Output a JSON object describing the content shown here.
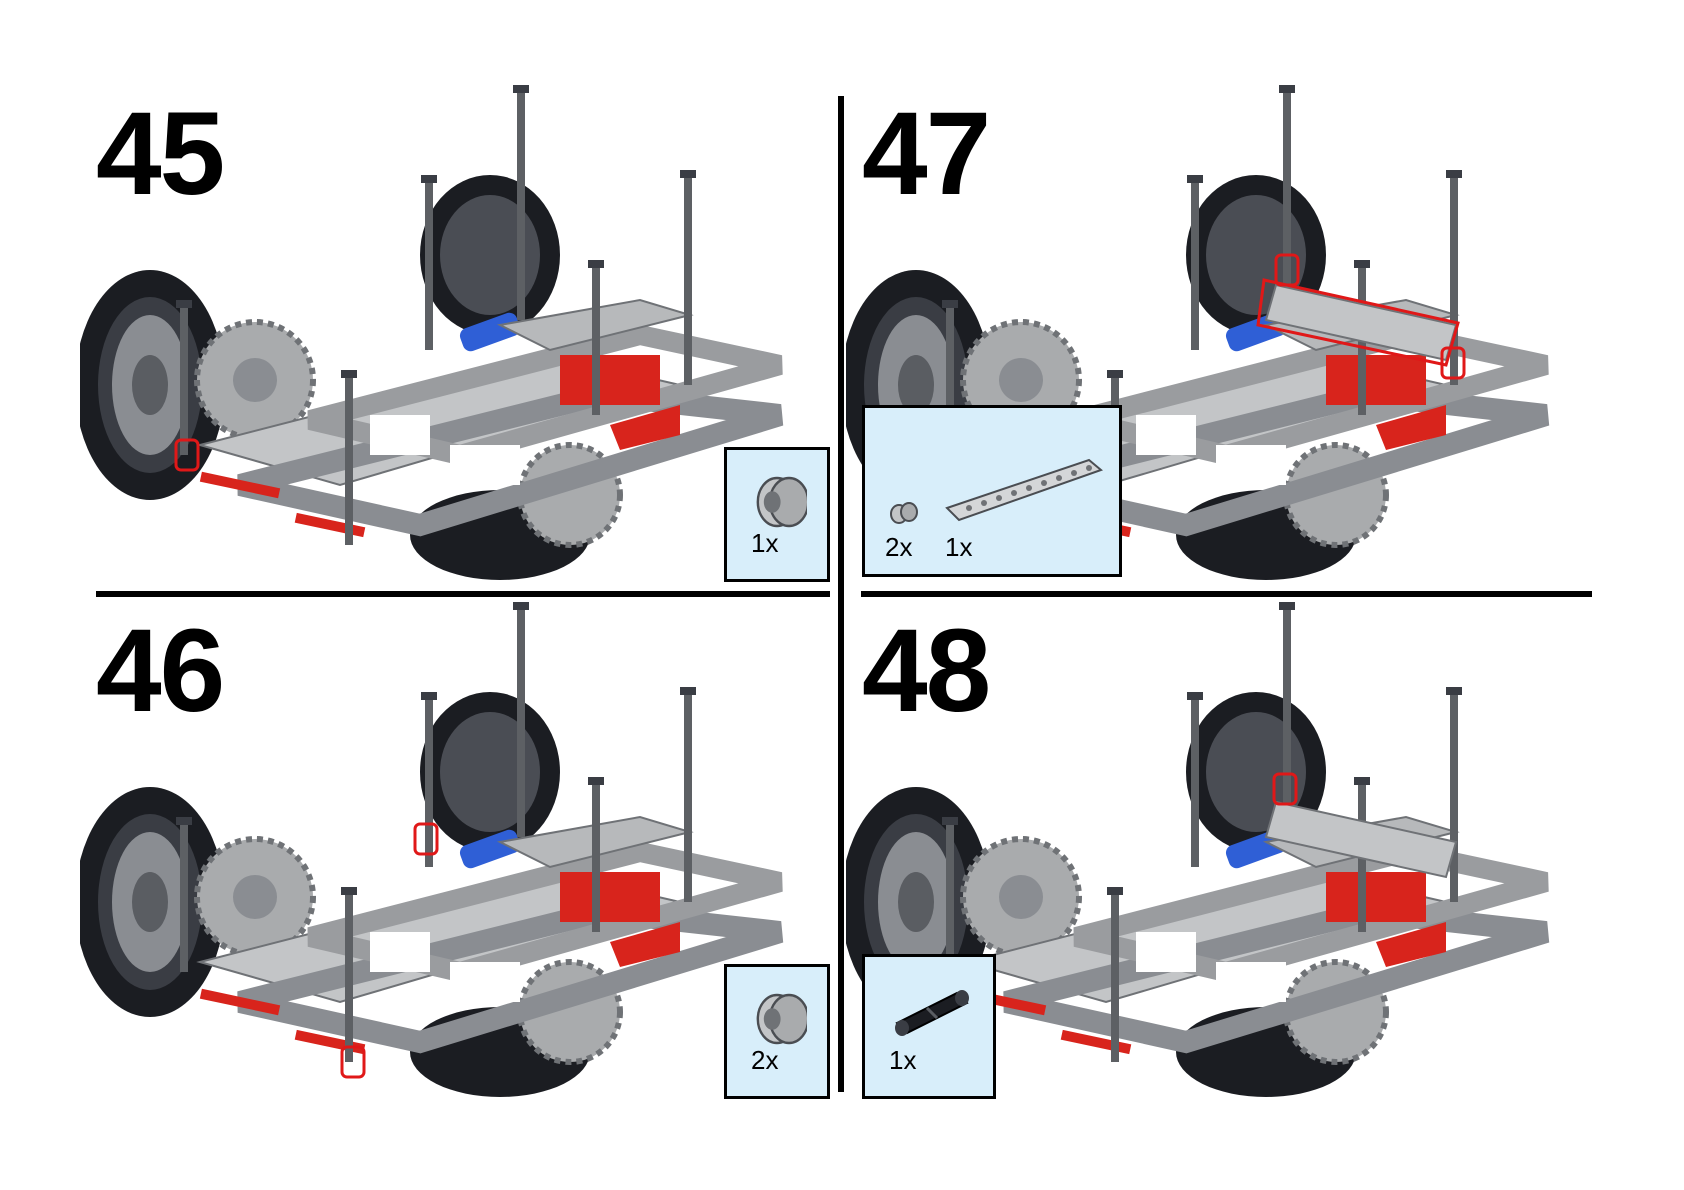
{
  "colors": {
    "parts_box_bg": "#d8eefa",
    "highlight": "#e01818",
    "frame_gray": "#a9abad",
    "accent_red": "#d8241c",
    "accent_blue": "#2f5fd6",
    "tire_black": "#1b1d22"
  },
  "steps": [
    {
      "number": "45",
      "parts": [
        {
          "icon": "axle-bush-icon",
          "qty": "1x"
        }
      ]
    },
    {
      "number": "46",
      "parts": [
        {
          "icon": "axle-bush-icon",
          "qty": "2x"
        }
      ]
    },
    {
      "number": "47",
      "parts": [
        {
          "icon": "small-pin-icon",
          "qty": "2x"
        },
        {
          "icon": "liftarm-9-icon",
          "qty": "1x"
        }
      ]
    },
    {
      "number": "48",
      "parts": [
        {
          "icon": "axle-pin-black-icon",
          "qty": "1x"
        }
      ]
    }
  ]
}
